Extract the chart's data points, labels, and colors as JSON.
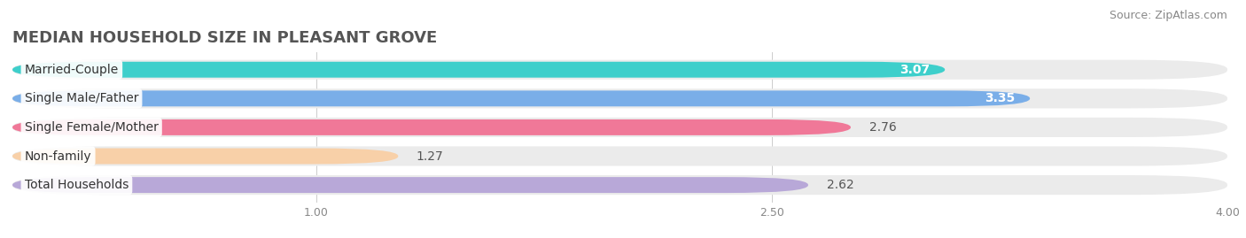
{
  "title": "MEDIAN HOUSEHOLD SIZE IN PLEASANT GROVE",
  "source": "Source: ZipAtlas.com",
  "categories": [
    "Married-Couple",
    "Single Male/Father",
    "Single Female/Mother",
    "Non-family",
    "Total Households"
  ],
  "values": [
    3.07,
    3.35,
    2.76,
    1.27,
    2.62
  ],
  "bar_colors": [
    "#3ecfcb",
    "#7aaee8",
    "#f07898",
    "#f8d0a8",
    "#b8a8d8"
  ],
  "track_color": "#ebebeb",
  "xlim_min": 0,
  "xlim_max": 4.0,
  "xticks": [
    1.0,
    2.5,
    4.0
  ],
  "xtick_labels": [
    "1.00",
    "2.50",
    "4.00"
  ],
  "title_fontsize": 13,
  "source_fontsize": 9,
  "bar_label_fontsize": 10,
  "value_label_fontsize": 10,
  "tick_fontsize": 9,
  "background_color": "#ffffff",
  "value_inside_threshold": 3.5,
  "value_colors_inside": [
    "#ffffff",
    "#ffffff",
    "#555555",
    "#555555",
    "#555555"
  ]
}
